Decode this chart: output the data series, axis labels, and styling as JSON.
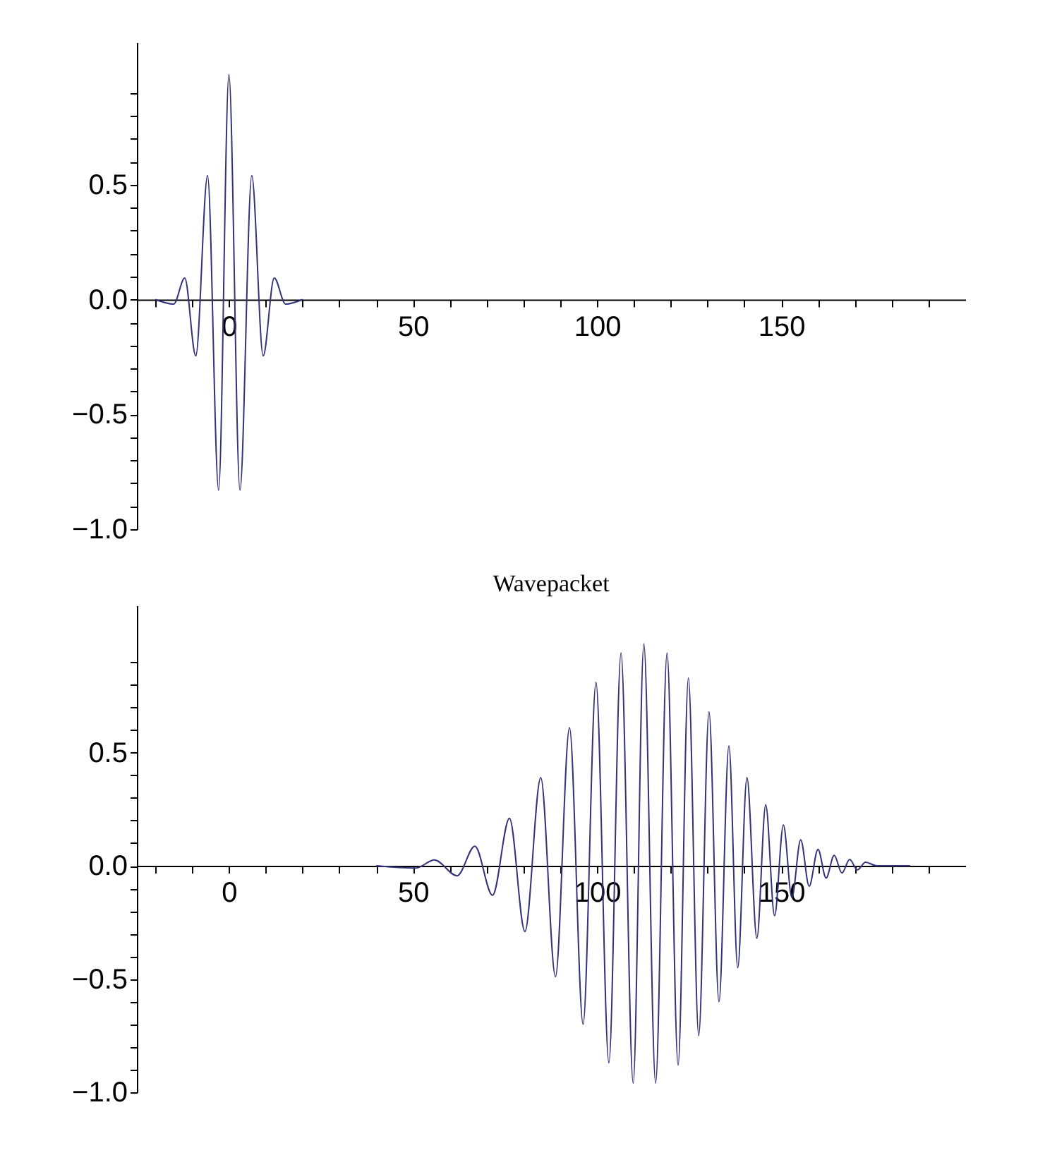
{
  "chart_data": [
    {
      "type": "line",
      "color": "#33337a",
      "xlim": [
        -25,
        200
      ],
      "ylim": [
        -1.0,
        1.12
      ],
      "xticks": [
        {
          "value": -20,
          "label": null
        },
        {
          "value": -10,
          "label": null
        },
        0,
        {
          "value": 10,
          "label": null
        },
        {
          "value": 20,
          "label": null
        },
        {
          "value": 30,
          "label": null
        },
        {
          "value": 40,
          "label": null
        },
        50,
        {
          "value": 60,
          "label": null
        },
        {
          "value": 70,
          "label": null
        },
        {
          "value": 80,
          "label": null
        },
        {
          "value": 90,
          "label": null
        },
        100,
        {
          "value": 110,
          "label": null
        },
        {
          "value": 120,
          "label": null
        },
        {
          "value": 130,
          "label": null
        },
        {
          "value": 140,
          "label": null
        },
        150,
        {
          "value": 160,
          "label": null
        },
        {
          "value": 170,
          "label": null
        },
        {
          "value": 180,
          "label": null
        },
        {
          "value": 190,
          "label": null
        }
      ],
      "yticks": [
        {
          "value": -1,
          "label": "−1.0"
        },
        {
          "value": -0.9,
          "label": null
        },
        {
          "value": -0.8,
          "label": null
        },
        {
          "value": -0.7,
          "label": null
        },
        {
          "value": -0.6,
          "label": null
        },
        {
          "value": -0.5,
          "label": "−0.5"
        },
        {
          "value": -0.4,
          "label": null
        },
        {
          "value": -0.3,
          "label": null
        },
        {
          "value": -0.2,
          "label": null
        },
        {
          "value": -0.1,
          "label": null
        },
        {
          "value": 0,
          "label": "0.0"
        },
        {
          "value": 0.1,
          "label": null
        },
        {
          "value": 0.2,
          "label": null
        },
        {
          "value": 0.3,
          "label": null
        },
        {
          "value": 0.4,
          "label": null
        },
        0.5,
        {
          "value": 0.6,
          "label": null
        },
        {
          "value": 0.7,
          "label": null
        },
        {
          "value": 0.8,
          "label": null
        },
        {
          "value": 0.9,
          "label": null
        }
      ],
      "x": [
        -20,
        -15,
        -12,
        -9,
        -5.8,
        -2.8,
        0,
        3.0,
        6.2,
        9.3,
        12.3,
        15.4,
        20
      ],
      "values": [
        0,
        -0.02,
        0.094,
        -0.245,
        0.54,
        -0.83,
        0.98,
        -0.83,
        0.54,
        -0.245,
        0.094,
        -0.02,
        0
      ]
    },
    {
      "type": "line",
      "title": "Wavepacket",
      "color": "#33337a",
      "xlim": [
        -25,
        200
      ],
      "ylim": [
        -1.0,
        1.15
      ],
      "xticks": [
        {
          "value": -20,
          "label": null
        },
        {
          "value": -10,
          "label": null
        },
        0,
        {
          "value": 10,
          "label": null
        },
        {
          "value": 20,
          "label": null
        },
        {
          "value": 30,
          "label": null
        },
        {
          "value": 40,
          "label": null
        },
        50,
        {
          "value": 60,
          "label": null
        },
        {
          "value": 70,
          "label": null
        },
        {
          "value": 80,
          "label": null
        },
        {
          "value": 90,
          "label": null
        },
        100,
        {
          "value": 110,
          "label": null
        },
        {
          "value": 120,
          "label": null
        },
        {
          "value": 130,
          "label": null
        },
        {
          "value": 140,
          "label": null
        },
        150,
        {
          "value": 160,
          "label": null
        },
        {
          "value": 170,
          "label": null
        },
        {
          "value": 180,
          "label": null
        },
        {
          "value": 190,
          "label": null
        }
      ],
      "yticks": [
        {
          "value": -1,
          "label": "−1.0"
        },
        {
          "value": -0.9,
          "label": null
        },
        {
          "value": -0.8,
          "label": null
        },
        {
          "value": -0.7,
          "label": null
        },
        {
          "value": -0.6,
          "label": null
        },
        {
          "value": -0.5,
          "label": "−0.5"
        },
        {
          "value": -0.4,
          "label": null
        },
        {
          "value": -0.3,
          "label": null
        },
        {
          "value": -0.2,
          "label": null
        },
        {
          "value": -0.1,
          "label": null
        },
        {
          "value": 0,
          "label": "0.0"
        },
        {
          "value": 0.1,
          "label": null
        },
        {
          "value": 0.2,
          "label": null
        },
        {
          "value": 0.3,
          "label": null
        },
        {
          "value": 0.4,
          "label": null
        },
        0.5,
        {
          "value": 0.6,
          "label": null
        },
        {
          "value": 0.7,
          "label": null
        },
        {
          "value": 0.8,
          "label": null
        },
        {
          "value": 0.9,
          "label": null
        }
      ],
      "x": [
        40,
        50.8,
        55.8,
        62,
        66.8,
        71.6,
        76.2,
        80.4,
        84.7,
        88.7,
        92.5,
        96.2,
        99.7,
        103.2,
        106.5,
        109.8,
        112.7,
        115.9,
        119,
        122,
        124.8,
        127.6,
        130.4,
        133.1,
        135.8,
        138.2,
        140.7,
        143.4,
        145.8,
        148.2,
        150.6,
        152.9,
        155.3,
        157.6,
        160,
        162.2,
        164.4,
        166.5,
        168.6,
        170.7,
        172.9,
        176,
        185
      ],
      "values": [
        0,
        -0.01,
        0.026,
        -0.044,
        0.087,
        -0.13,
        0.21,
        -0.29,
        0.39,
        -0.49,
        0.61,
        -0.7,
        0.81,
        -0.87,
        0.94,
        -0.96,
        0.98,
        -0.96,
        0.94,
        -0.88,
        0.83,
        -0.75,
        0.68,
        -0.6,
        0.53,
        -0.45,
        0.39,
        -0.32,
        0.27,
        -0.22,
        0.18,
        -0.14,
        0.115,
        -0.09,
        0.073,
        -0.054,
        0.046,
        -0.032,
        0.028,
        -0.018,
        0.016,
        0,
        0
      ]
    }
  ]
}
